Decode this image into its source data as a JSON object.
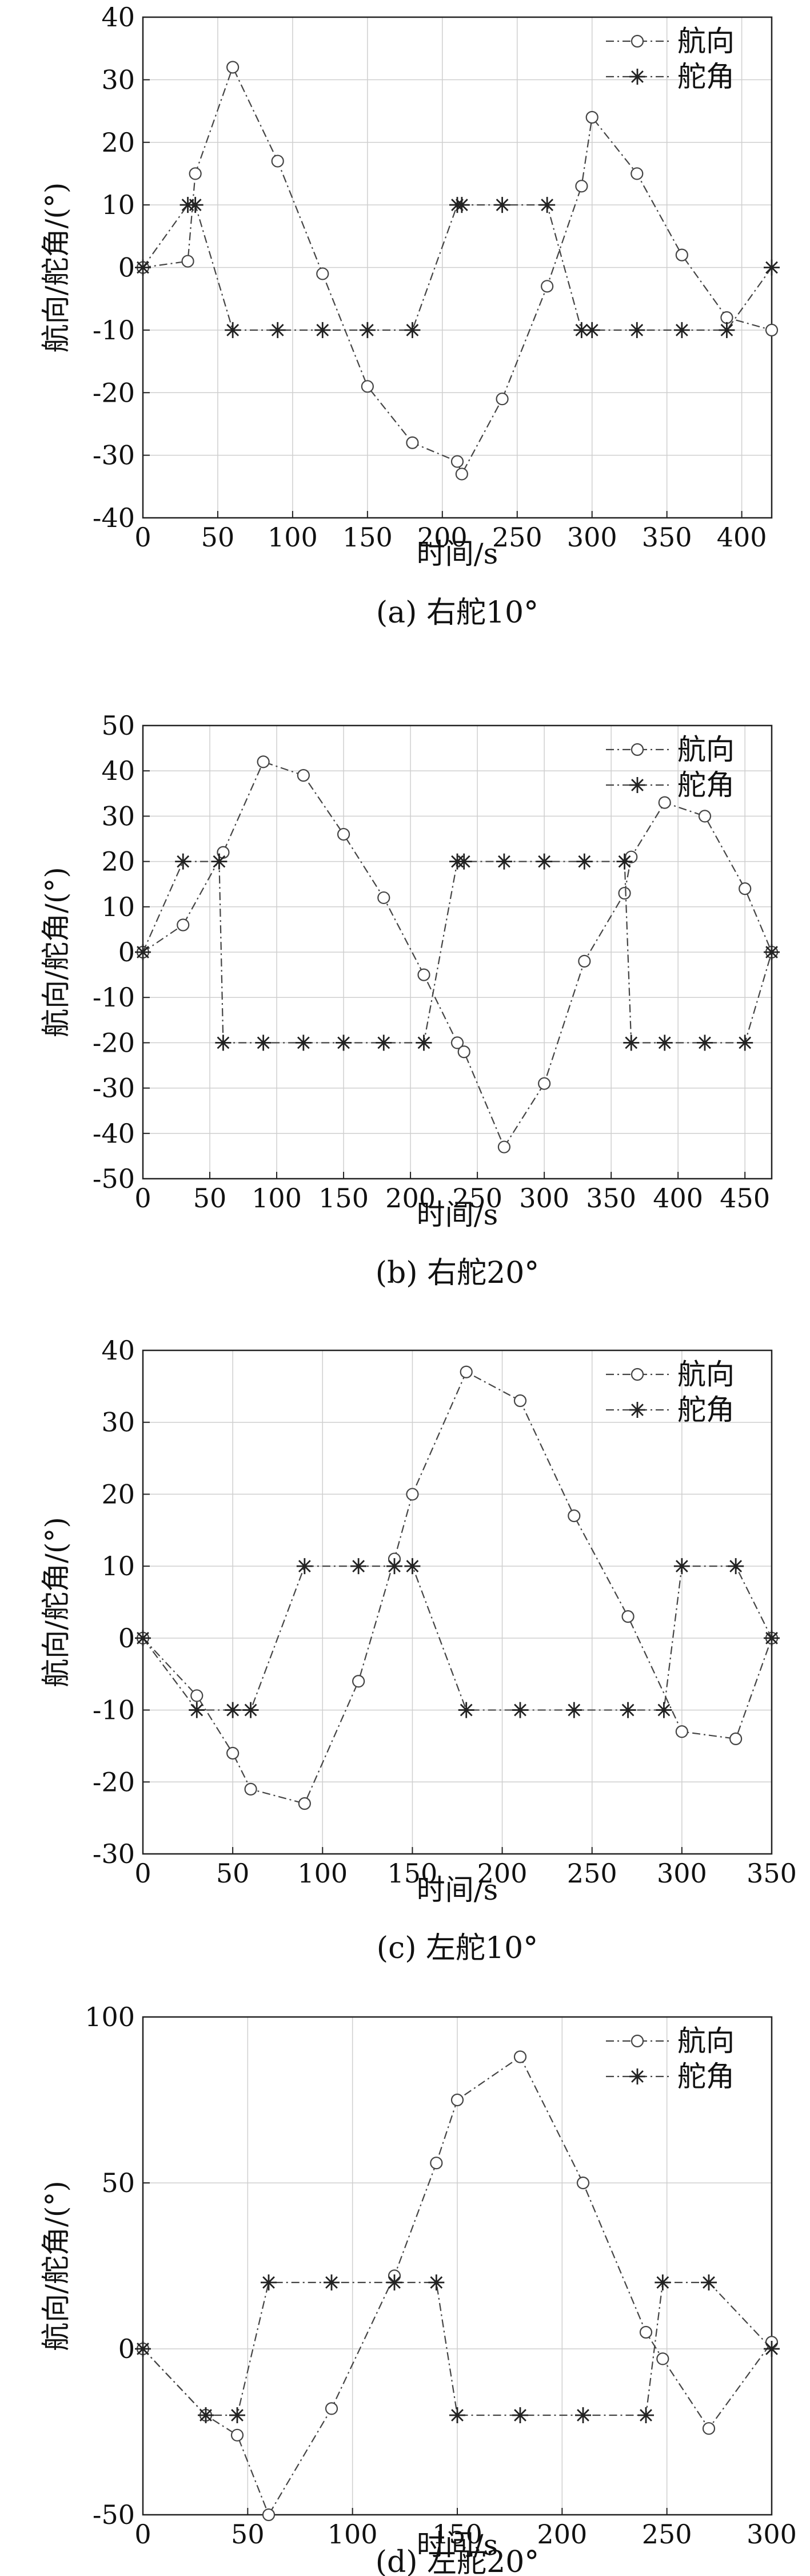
{
  "chart_data": [
    {
      "type": "line",
      "caption": "(a) 右舵10°",
      "xlabel": "时间/s",
      "ylabel": "航向/舵角/(°)",
      "xlim": [
        0,
        420
      ],
      "ylim": [
        -40,
        40
      ],
      "xticks": [
        0,
        50,
        100,
        150,
        200,
        250,
        300,
        350,
        400
      ],
      "yticks": [
        -40,
        -30,
        -20,
        -10,
        0,
        10,
        20,
        30,
        40
      ],
      "grid": true,
      "legend": "top-right",
      "series": [
        {
          "name": "航向",
          "marker": "circle",
          "x": [
            0,
            30,
            35,
            60,
            90,
            120,
            150,
            180,
            210,
            213,
            240,
            270,
            293,
            300,
            330,
            360,
            390,
            420
          ],
          "y": [
            0,
            1,
            15,
            32,
            17,
            -1,
            -19,
            -28,
            -31,
            -33,
            -21,
            -3,
            13,
            24,
            15,
            2,
            -8,
            -10
          ]
        },
        {
          "name": "舵角",
          "marker": "star",
          "x": [
            0,
            30,
            35,
            60,
            90,
            120,
            150,
            180,
            210,
            213,
            240,
            270,
            293,
            300,
            330,
            360,
            390,
            420
          ],
          "y": [
            0,
            10,
            10,
            -10,
            -10,
            -10,
            -10,
            -10,
            10,
            10,
            10,
            10,
            -10,
            -10,
            -10,
            -10,
            -10,
            0
          ]
        }
      ]
    },
    {
      "type": "line",
      "caption": "(b) 右舵20°",
      "xlabel": "时间/s",
      "ylabel": "航向/舵角/(°)",
      "xlim": [
        0,
        470
      ],
      "ylim": [
        -50,
        50
      ],
      "xticks": [
        0,
        50,
        100,
        150,
        200,
        250,
        300,
        350,
        400,
        450
      ],
      "yticks": [
        -50,
        -40,
        -30,
        -20,
        -10,
        0,
        10,
        20,
        30,
        40,
        50
      ],
      "grid": true,
      "legend": "top-right",
      "series": [
        {
          "name": "航向",
          "marker": "circle",
          "x": [
            0,
            30,
            60,
            90,
            120,
            150,
            180,
            210,
            235,
            240,
            270,
            300,
            330,
            360,
            365,
            390,
            420,
            450,
            470
          ],
          "y": [
            0,
            6,
            22,
            42,
            39,
            26,
            12,
            -5,
            -20,
            -22,
            -43,
            -29,
            -2,
            13,
            21,
            33,
            30,
            14,
            0
          ]
        },
        {
          "name": "舵角",
          "marker": "star",
          "x": [
            0,
            30,
            57,
            60,
            90,
            120,
            150,
            180,
            210,
            235,
            240,
            270,
            300,
            330,
            360,
            365,
            390,
            420,
            450,
            470
          ],
          "y": [
            0,
            20,
            20,
            -20,
            -20,
            -20,
            -20,
            -20,
            -20,
            20,
            20,
            20,
            20,
            20,
            20,
            -20,
            -20,
            -20,
            -20,
            0
          ]
        }
      ]
    },
    {
      "type": "line",
      "caption": "(c) 左舵10°",
      "xlabel": "时间/s",
      "ylabel": "航向/舵角/(°)",
      "xlim": [
        0,
        350
      ],
      "ylim": [
        -30,
        40
      ],
      "xticks": [
        0,
        50,
        100,
        150,
        200,
        250,
        300,
        350
      ],
      "yticks": [
        -30,
        -20,
        -10,
        0,
        10,
        20,
        30,
        40
      ],
      "grid": true,
      "legend": "top-right",
      "series": [
        {
          "name": "航向",
          "marker": "circle",
          "x": [
            0,
            30,
            50,
            60,
            90,
            120,
            140,
            150,
            180,
            210,
            240,
            270,
            300,
            330,
            350
          ],
          "y": [
            0,
            -8,
            -16,
            -21,
            -23,
            -6,
            11,
            20,
            37,
            33,
            17,
            3,
            -13,
            -14,
            0
          ]
        },
        {
          "name": "舵角",
          "marker": "star",
          "x": [
            0,
            30,
            50,
            60,
            90,
            120,
            140,
            150,
            180,
            210,
            240,
            270,
            290,
            300,
            330,
            350
          ],
          "y": [
            0,
            -10,
            -10,
            -10,
            10,
            10,
            10,
            10,
            -10,
            -10,
            -10,
            -10,
            -10,
            10,
            10,
            0
          ]
        }
      ]
    },
    {
      "type": "line",
      "caption": "(d) 左舵20°",
      "xlabel": "时间/s",
      "ylabel": "航向/舵角/(°)",
      "xlim": [
        0,
        300
      ],
      "ylim": [
        -50,
        100
      ],
      "xticks": [
        0,
        50,
        100,
        150,
        200,
        250,
        300
      ],
      "yticks": [
        -50,
        0,
        50,
        100
      ],
      "grid": true,
      "legend": "top-right",
      "series": [
        {
          "name": "航向",
          "marker": "circle",
          "x": [
            0,
            30,
            45,
            60,
            90,
            120,
            140,
            150,
            180,
            210,
            240,
            248,
            270,
            300
          ],
          "y": [
            0,
            -20,
            -26,
            -50,
            -18,
            22,
            56,
            75,
            88,
            50,
            5,
            -3,
            -24,
            2
          ]
        },
        {
          "name": "舵角",
          "marker": "star",
          "x": [
            0,
            30,
            45,
            60,
            90,
            120,
            140,
            150,
            180,
            210,
            240,
            248,
            270,
            300
          ],
          "y": [
            0,
            -20,
            -20,
            20,
            20,
            20,
            20,
            -20,
            -20,
            -20,
            -20,
            20,
            20,
            0
          ]
        }
      ]
    }
  ]
}
